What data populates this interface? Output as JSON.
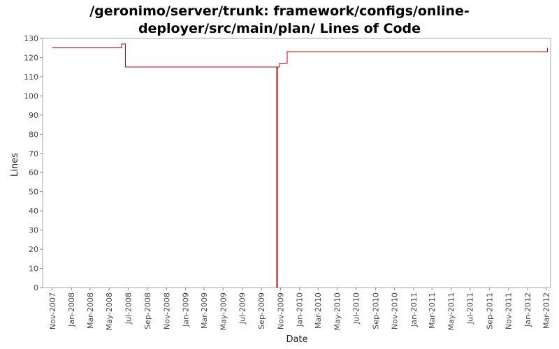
{
  "chart_data": {
    "type": "line",
    "title_line1": "/geronimo/server/trunk: framework/configs/online-",
    "title_line2": "deployer/src/main/plan/ Lines of Code",
    "xlabel": "Date",
    "ylabel": "Lines",
    "ylim": [
      0,
      130
    ],
    "yticks": [
      0,
      10,
      20,
      30,
      40,
      50,
      60,
      70,
      80,
      90,
      100,
      110,
      120,
      130
    ],
    "xlim": [
      "2007-10-01",
      "2012-03-15"
    ],
    "xticks": [
      {
        "date": "2007-11-01",
        "label": "Nov-2007"
      },
      {
        "date": "2008-01-01",
        "label": "Jan-2008"
      },
      {
        "date": "2008-03-01",
        "label": "Mar-2008"
      },
      {
        "date": "2008-05-01",
        "label": "May-2008"
      },
      {
        "date": "2008-07-01",
        "label": "Jul-2008"
      },
      {
        "date": "2008-09-01",
        "label": "Sep-2008"
      },
      {
        "date": "2008-11-01",
        "label": "Nov-2008"
      },
      {
        "date": "2009-01-01",
        "label": "Jan-2009"
      },
      {
        "date": "2009-03-01",
        "label": "Mar-2009"
      },
      {
        "date": "2009-05-01",
        "label": "May-2009"
      },
      {
        "date": "2009-07-01",
        "label": "Jul-2009"
      },
      {
        "date": "2009-09-01",
        "label": "Sep-2009"
      },
      {
        "date": "2009-11-01",
        "label": "Nov-2009"
      },
      {
        "date": "2010-01-01",
        "label": "Jan-2010"
      },
      {
        "date": "2010-03-01",
        "label": "Mar-2010"
      },
      {
        "date": "2010-05-01",
        "label": "May-2010"
      },
      {
        "date": "2010-07-01",
        "label": "Jul-2010"
      },
      {
        "date": "2010-09-01",
        "label": "Sep-2010"
      },
      {
        "date": "2010-11-01",
        "label": "Nov-2010"
      },
      {
        "date": "2011-01-01",
        "label": "Jan-2011"
      },
      {
        "date": "2011-03-01",
        "label": "Mar-2011"
      },
      {
        "date": "2011-05-01",
        "label": "May-2011"
      },
      {
        "date": "2011-07-01",
        "label": "Jul-2011"
      },
      {
        "date": "2011-09-01",
        "label": "Sep-2011"
      },
      {
        "date": "2011-11-01",
        "label": "Nov-2011"
      },
      {
        "date": "2012-01-01",
        "label": "Jan-2012"
      },
      {
        "date": "2012-03-01",
        "label": "Mar-2012"
      }
    ],
    "grid": false,
    "legend": "none",
    "series": [
      {
        "color": "#cc0000",
        "step": true,
        "points": [
          {
            "x": "2007-11-01",
            "y": 125
          },
          {
            "x": "2008-06-10",
            "y": 127
          },
          {
            "x": "2008-06-22",
            "y": 115
          },
          {
            "x": "2009-10-20",
            "y": 0
          },
          {
            "x": "2009-10-22",
            "y": 115
          },
          {
            "x": "2009-10-29",
            "y": 117
          },
          {
            "x": "2009-11-22",
            "y": 123
          },
          {
            "x": "2012-03-05",
            "y": 125
          }
        ],
        "end": "2012-03-05"
      }
    ]
  }
}
